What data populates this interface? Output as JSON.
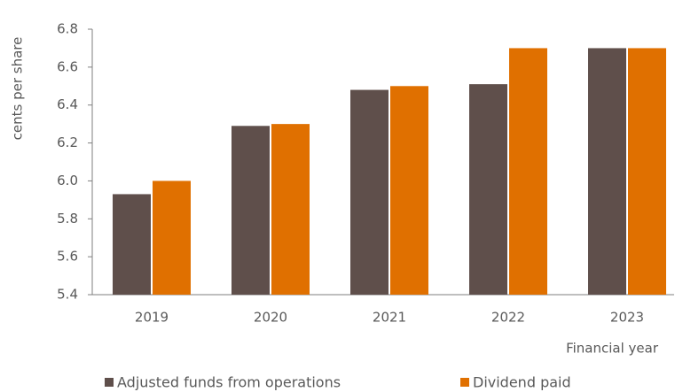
{
  "chart_data": {
    "type": "bar",
    "y_label": "cents per share",
    "x_label": "Financial year",
    "categories": [
      "2019",
      "2020",
      "2021",
      "2022",
      "2023"
    ],
    "series": [
      {
        "name": "Adjusted funds from operations",
        "color": "#5f4f4b",
        "values": [
          5.93,
          6.29,
          6.48,
          6.51,
          6.7
        ]
      },
      {
        "name": "Dividend paid",
        "color": "#e07000",
        "values": [
          6.0,
          6.3,
          6.5,
          6.7,
          6.7
        ]
      }
    ],
    "ylim": [
      5.4,
      6.8
    ],
    "yticks": [
      5.4,
      5.6,
      5.8,
      {
        "value": 6.0,
        "label": "6.0"
      },
      6.2,
      6.4,
      6.6,
      6.8
    ],
    "grid": false,
    "legend": "bottom"
  }
}
